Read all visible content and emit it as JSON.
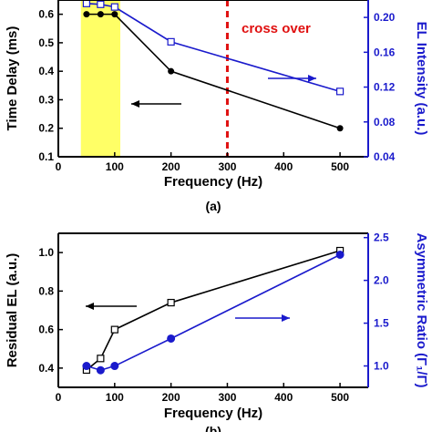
{
  "panels": [
    {
      "label": "(a)",
      "chart_data": {
        "type": "line",
        "xlabel": "Frequency (Hz)",
        "ylabel_left": "Time Delay (ms)",
        "ylabel_right": "EL Intensity (a.u.)",
        "xlim": [
          0,
          550
        ],
        "ylim_left": [
          0.1,
          0.65
        ],
        "ylim_right": [
          0.04,
          0.22
        ],
        "x_ticks": [
          0,
          100,
          200,
          300,
          400,
          500
        ],
        "y_ticks_left": [
          0.1,
          0.2,
          0.3,
          0.4,
          0.5,
          0.6
        ],
        "y_ticks_right": [
          0.04,
          0.08,
          0.12,
          0.16,
          0.2
        ],
        "series": [
          {
            "axis": "left",
            "color": "#000000",
            "marker": "filled-circle",
            "x": [
              50,
              75,
              100,
              200,
              500
            ],
            "y": [
              0.6,
              0.6,
              0.6,
              0.4,
              0.2
            ]
          },
          {
            "axis": "right",
            "color": "#1a1acc",
            "marker": "open-square",
            "x": [
              50,
              75,
              100,
              200,
              500
            ],
            "y": [
              0.216,
              0.215,
              0.212,
              0.172,
              0.115
            ]
          }
        ],
        "highlight_band": {
          "x_range": [
            40,
            110
          ],
          "color": "#ffff66"
        },
        "vertical_line": {
          "x": 300,
          "color": "#e01010",
          "style": "dashed"
        },
        "annotation": {
          "text": "cross over",
          "color": "#e01010"
        },
        "arrows": [
          {
            "direction": "left",
            "color": "#000000"
          },
          {
            "direction": "right",
            "color": "#1a1acc"
          }
        ]
      }
    },
    {
      "label": "(b)",
      "chart_data": {
        "type": "line",
        "xlabel": "Frequency (Hz)",
        "ylabel_left": "Residual EL (a.u.)",
        "ylabel_right": "Asymmetric Ratio (Γ₁/Γ)",
        "xlim": [
          0,
          550
        ],
        "ylim_left": [
          0.3,
          1.1
        ],
        "ylim_right": [
          0.75,
          2.55
        ],
        "x_ticks": [
          0,
          100,
          200,
          300,
          400,
          500
        ],
        "y_ticks_left": [
          0.4,
          0.6,
          0.8,
          1.0
        ],
        "y_ticks_right": [
          1.0,
          1.5,
          2.0,
          2.5
        ],
        "series": [
          {
            "axis": "left",
            "color": "#000000",
            "marker": "open-square",
            "x": [
              50,
              75,
              100,
              200,
              500
            ],
            "y": [
              0.39,
              0.45,
              0.6,
              0.74,
              1.01
            ]
          },
          {
            "axis": "right",
            "color": "#1a1acc",
            "marker": "filled-circle",
            "x": [
              50,
              75,
              100,
              200,
              500
            ],
            "y": [
              1.0,
              0.95,
              1.0,
              1.32,
              2.3
            ]
          }
        ],
        "arrows": [
          {
            "direction": "left",
            "color": "#000000"
          },
          {
            "direction": "right",
            "color": "#1a1acc"
          }
        ]
      }
    }
  ]
}
